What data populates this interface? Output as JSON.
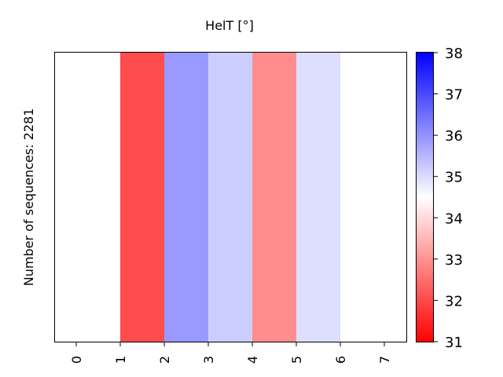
{
  "chart_data": {
    "type": "heatmap",
    "title": "HelT [°]",
    "ylabel": "Number of sequences: 2281",
    "xlabel": "",
    "x_ticks": [
      "0",
      "1",
      "2",
      "3",
      "4",
      "5",
      "6",
      "7"
    ],
    "x_range": [
      0,
      7
    ],
    "cells": [
      {
        "x_start": 0,
        "x_end": 1,
        "color": "#ffffff"
      },
      {
        "x_start": 1,
        "x_end": 2,
        "color": "#ff4c4c"
      },
      {
        "x_start": 2,
        "x_end": 3,
        "color": "#9999ff"
      },
      {
        "x_start": 3,
        "x_end": 4,
        "color": "#cccdff"
      },
      {
        "x_start": 4,
        "x_end": 5,
        "color": "#ff8d8d"
      },
      {
        "x_start": 5,
        "x_end": 6,
        "color": "#dedeff"
      },
      {
        "x_start": 6,
        "x_end": 7,
        "color": "#ffffff"
      }
    ],
    "colorbar": {
      "min": 31,
      "max": 38,
      "ticks": [
        "31",
        "32",
        "33",
        "34",
        "35",
        "36",
        "37",
        "38"
      ],
      "colors": [
        "#ff0000",
        "#ffffff",
        "#0000ff"
      ]
    },
    "grid": false,
    "legend": "colorbar-right"
  }
}
